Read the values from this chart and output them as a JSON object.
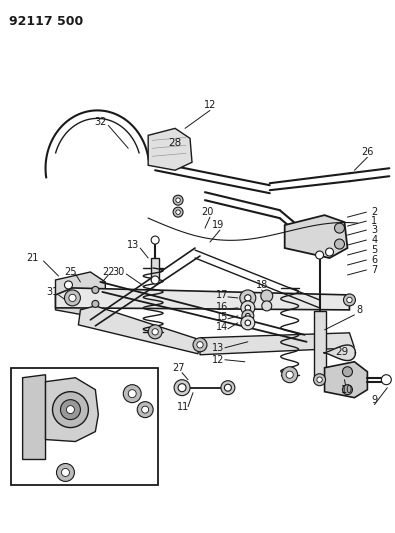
{
  "title": "92117 500",
  "bg_color": "#ffffff",
  "line_color": "#1a1a1a",
  "title_fontsize": 9,
  "label_fontsize": 7,
  "fig_width": 3.95,
  "fig_height": 5.33,
  "dpi": 100
}
